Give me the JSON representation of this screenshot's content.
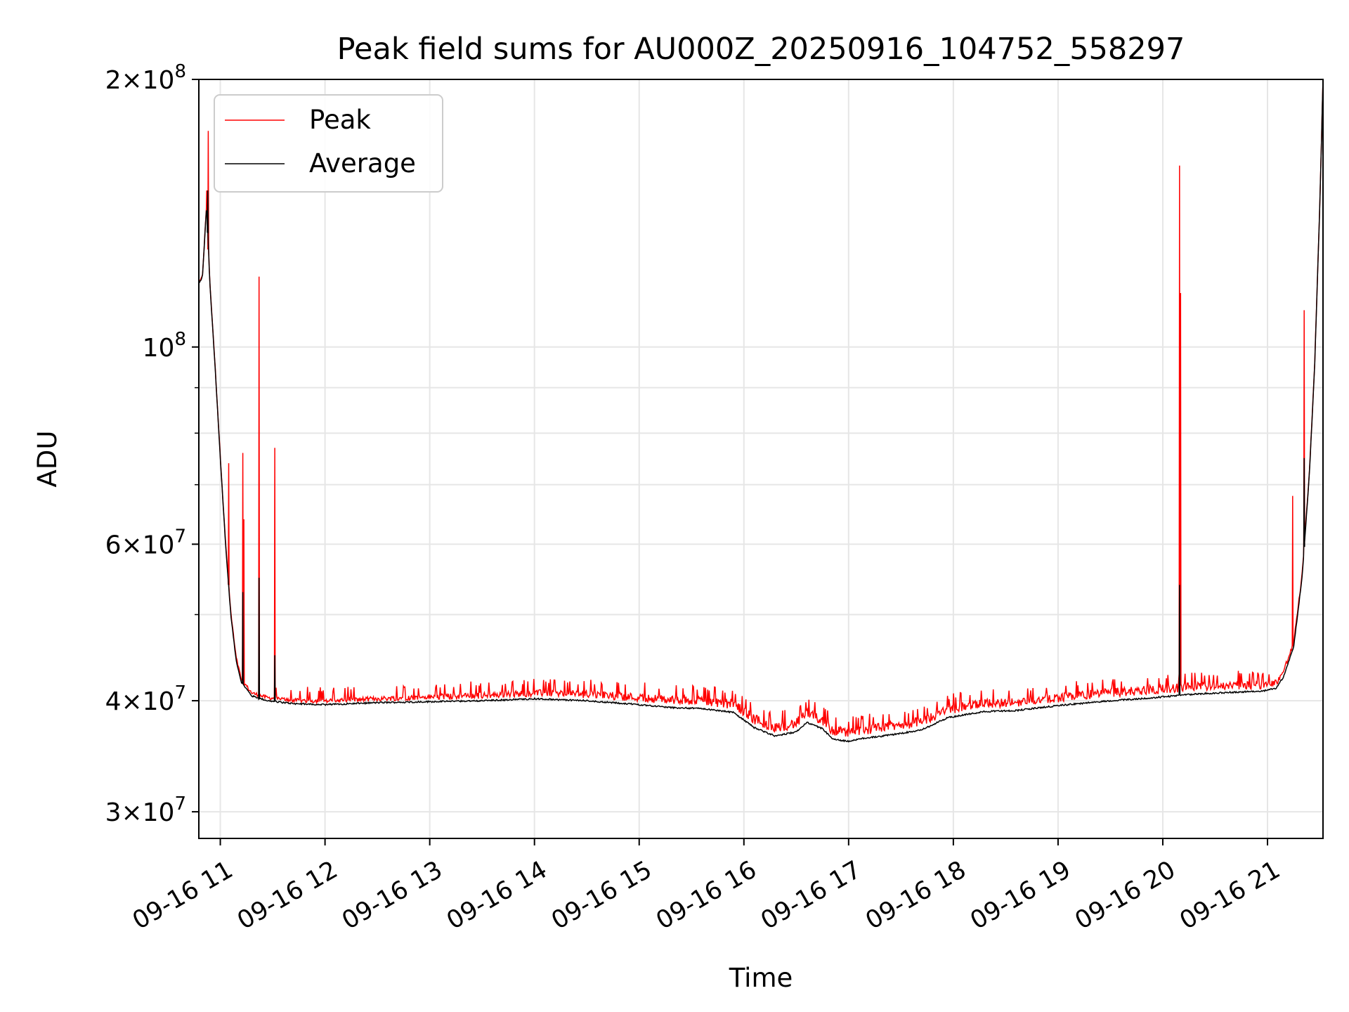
{
  "chart_data": {
    "type": "line",
    "title": "Peak field sums for AU000Z_20250916_104752_558297",
    "xlabel": "Time",
    "ylabel": "ADU",
    "yscale": "log",
    "ylim": [
      28000000,
      200000000
    ],
    "xlim_hours": [
      10.795,
      21.53
    ],
    "grid": true,
    "legend_position": "top-left",
    "x_ticks": [
      {
        "h": 11,
        "label": "09-16 11"
      },
      {
        "h": 12,
        "label": "09-16 12"
      },
      {
        "h": 13,
        "label": "09-16 13"
      },
      {
        "h": 14,
        "label": "09-16 14"
      },
      {
        "h": 15,
        "label": "09-16 15"
      },
      {
        "h": 16,
        "label": "09-16 16"
      },
      {
        "h": 17,
        "label": "09-16 17"
      },
      {
        "h": 18,
        "label": "09-16 18"
      },
      {
        "h": 19,
        "label": "09-16 19"
      },
      {
        "h": 20,
        "label": "09-16 20"
      },
      {
        "h": 21,
        "label": "09-16 21"
      }
    ],
    "y_ticks": [
      {
        "v": 30000000,
        "mant": "3",
        "exp": "7"
      },
      {
        "v": 40000000,
        "mant": "4",
        "exp": "7"
      },
      {
        "v": 60000000,
        "mant": "6",
        "exp": "7"
      },
      {
        "v": 100000000,
        "mant": "",
        "exp": "8"
      },
      {
        "v": 200000000,
        "mant": "2",
        "exp": "8"
      }
    ],
    "y_minor_ticks": [
      50000000,
      70000000,
      80000000,
      90000000
    ],
    "series": [
      {
        "name": "Peak",
        "color": "#ff0000"
      },
      {
        "name": "Average",
        "color": "#000000"
      }
    ],
    "average_curve": [
      [
        10.8,
        118000000
      ],
      [
        10.83,
        120000000
      ],
      [
        10.87,
        145000000
      ],
      [
        10.9,
        118000000
      ],
      [
        10.95,
        95000000
      ],
      [
        11.0,
        75000000
      ],
      [
        11.05,
        60000000
      ],
      [
        11.1,
        50000000
      ],
      [
        11.15,
        44500000
      ],
      [
        11.2,
        42000000
      ],
      [
        11.3,
        40500000
      ],
      [
        11.45,
        40000000
      ],
      [
        11.7,
        39700000
      ],
      [
        12.0,
        39600000
      ],
      [
        12.5,
        39800000
      ],
      [
        13.0,
        39900000
      ],
      [
        13.5,
        40000000
      ],
      [
        14.0,
        40200000
      ],
      [
        14.5,
        40000000
      ],
      [
        15.0,
        39600000
      ],
      [
        15.3,
        39300000
      ],
      [
        15.6,
        39200000
      ],
      [
        15.9,
        38800000
      ],
      [
        16.1,
        37300000
      ],
      [
        16.3,
        36500000
      ],
      [
        16.5,
        36900000
      ],
      [
        16.6,
        37800000
      ],
      [
        16.75,
        37200000
      ],
      [
        16.85,
        36200000
      ],
      [
        17.0,
        36000000
      ],
      [
        17.15,
        36300000
      ],
      [
        17.4,
        36600000
      ],
      [
        17.7,
        37100000
      ],
      [
        17.95,
        38300000
      ],
      [
        18.3,
        38900000
      ],
      [
        18.6,
        39000000
      ],
      [
        19.0,
        39500000
      ],
      [
        19.5,
        40000000
      ],
      [
        19.9,
        40300000
      ],
      [
        20.3,
        40700000
      ],
      [
        20.7,
        40900000
      ],
      [
        20.95,
        41000000
      ],
      [
        21.08,
        41300000
      ],
      [
        21.15,
        42500000
      ],
      [
        21.25,
        46000000
      ],
      [
        21.33,
        55000000
      ],
      [
        21.4,
        72000000
      ],
      [
        21.45,
        95000000
      ],
      [
        21.5,
        145000000
      ],
      [
        21.53,
        200000000
      ]
    ],
    "peak_offset": [
      [
        10.8,
        0.003
      ],
      [
        11.2,
        0.01
      ],
      [
        12.0,
        0.012
      ],
      [
        14.0,
        0.02
      ],
      [
        15.0,
        0.025
      ],
      [
        16.0,
        0.03
      ],
      [
        17.0,
        0.03
      ],
      [
        18.0,
        0.028
      ],
      [
        20.0,
        0.028
      ],
      [
        21.1,
        0.02
      ],
      [
        21.53,
        0.0
      ]
    ],
    "peak_spikes": [
      [
        10.885,
        175000000
      ],
      [
        10.87,
        150000000
      ],
      [
        11.08,
        74000000
      ],
      [
        11.215,
        76000000
      ],
      [
        11.225,
        64000000
      ],
      [
        11.37,
        120000000
      ],
      [
        11.52,
        77000000
      ],
      [
        20.16,
        160000000
      ],
      [
        20.17,
        115000000
      ],
      [
        21.24,
        68000000
      ],
      [
        21.35,
        110000000
      ]
    ],
    "average_spikes": [
      [
        10.88,
        150000000
      ],
      [
        11.215,
        53000000
      ],
      [
        11.37,
        55000000
      ],
      [
        11.52,
        45000000
      ],
      [
        20.16,
        54000000
      ],
      [
        21.35,
        75000000
      ]
    ]
  }
}
